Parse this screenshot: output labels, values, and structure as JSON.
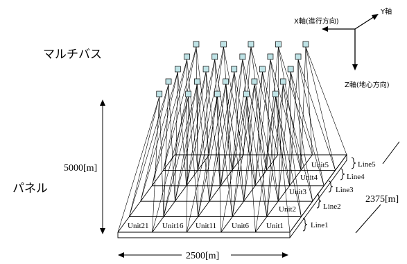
{
  "labels": {
    "multibus": "マルチバス",
    "panel": "パネル",
    "height": "5000[m]",
    "width": "2500[m]",
    "depth": "2375[m]"
  },
  "axes": {
    "x": "X軸(進行方向)",
    "y": "Y軸",
    "z": "Z軸(地心方向)"
  },
  "lines": [
    "Line5",
    "Line4",
    "Line3",
    "Line2",
    "Line1"
  ],
  "front_units": [
    "Unit21",
    "Unit16",
    "Unit11",
    "Unit6",
    "Unit1"
  ],
  "right_units": [
    "Unit5",
    "Unit4",
    "Unit3",
    "Unit2"
  ],
  "node_color": "#bfe3e6"
}
